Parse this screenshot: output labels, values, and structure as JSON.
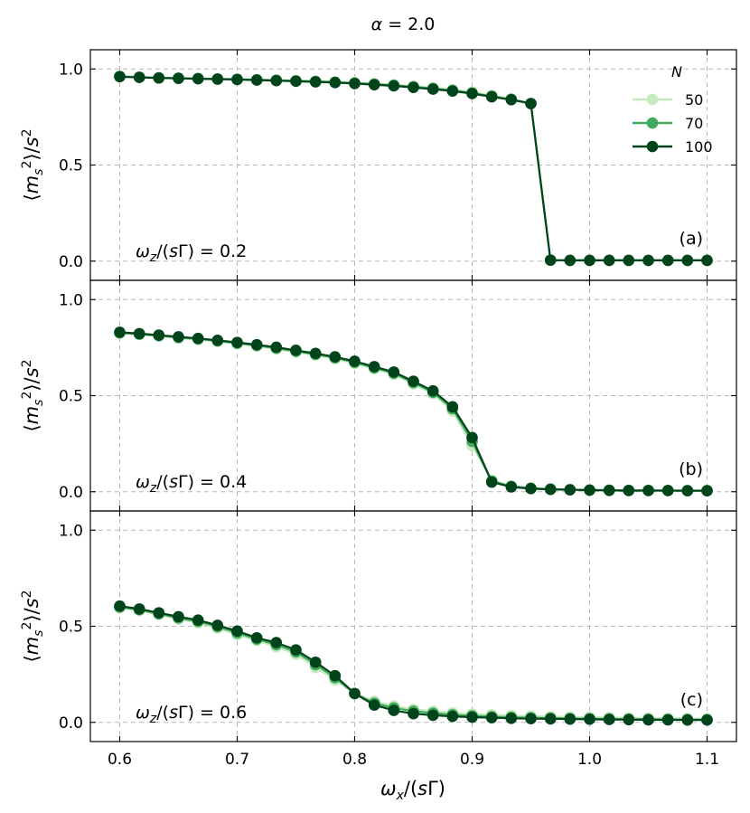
{
  "chart_data": {
    "type": "line",
    "title": "α = 2.0",
    "xlabel": "ω_x/(sΓ)",
    "ylabel": "⟨m_s²⟩/s²",
    "xlim": [
      0.575,
      1.125
    ],
    "ylim": [
      -0.1,
      1.1
    ],
    "xticks": [
      "0.6",
      "0.7",
      "0.8",
      "0.9",
      "1.0",
      "1.1"
    ],
    "yticks": [
      "0.0",
      "0.5",
      "1.0"
    ],
    "grid": true,
    "legend": {
      "title": "N",
      "position": "top-right",
      "entries": [
        "50",
        "70",
        "100"
      ]
    },
    "colors": {
      "N50": "#c7e9c0",
      "N70": "#41ab5d",
      "N100": "#00441b"
    },
    "x": [
      0.6,
      0.6125,
      0.625,
      0.6375,
      0.65,
      0.6625,
      0.675,
      0.6875,
      0.7,
      0.7125,
      0.725,
      0.7375,
      0.75,
      0.7625,
      0.775,
      0.7875,
      0.8,
      0.8125,
      0.825,
      0.8375,
      0.85,
      0.8625,
      0.875,
      0.8875,
      0.9,
      0.9125,
      0.925,
      0.9375,
      0.95,
      0.9625,
      0.975,
      0.9875,
      1.0,
      1.0125,
      1.025,
      1.0375,
      1.05,
      1.0625,
      1.075,
      1.0875,
      1.1
    ],
    "panels": [
      {
        "tag": "(a)",
        "annotation": "ω_z/(sΓ) = 0.2",
        "x": [
          0.6,
          0.6167,
          0.6333,
          0.65,
          0.6667,
          0.6833,
          0.7,
          0.7167,
          0.7333,
          0.75,
          0.7667,
          0.7833,
          0.8,
          0.8167,
          0.8333,
          0.85,
          0.8667,
          0.8833,
          0.9,
          0.9167,
          0.9333,
          0.95,
          0.9667,
          0.9833,
          1.0,
          1.0167,
          1.0333,
          1.05,
          1.0667,
          1.0833,
          1.1
        ],
        "series": [
          {
            "name": "50",
            "values": [
              0.962,
              0.958,
              0.955,
              0.953,
              0.951,
              0.949,
              0.947,
              0.945,
              0.943,
              0.94,
              0.937,
              0.933,
              0.929,
              0.924,
              0.918,
              0.911,
              0.903,
              0.893,
              0.88,
              0.863,
              0.845,
              0.82,
              0.005,
              0.004,
              0.004,
              0.004,
              0.004,
              0.004,
              0.004,
              0.004,
              0.004
            ]
          },
          {
            "name": "70",
            "values": [
              0.961,
              0.957,
              0.954,
              0.952,
              0.95,
              0.948,
              0.946,
              0.944,
              0.941,
              0.938,
              0.935,
              0.931,
              0.927,
              0.921,
              0.915,
              0.907,
              0.898,
              0.888,
              0.875,
              0.858,
              0.842,
              0.82,
              0.005,
              0.004,
              0.004,
              0.004,
              0.004,
              0.004,
              0.004,
              0.004,
              0.004
            ]
          },
          {
            "name": "100",
            "values": [
              0.96,
              0.956,
              0.953,
              0.951,
              0.949,
              0.947,
              0.945,
              0.942,
              0.939,
              0.936,
              0.933,
              0.929,
              0.924,
              0.918,
              0.912,
              0.904,
              0.895,
              0.885,
              0.872,
              0.855,
              0.84,
              0.82,
              0.005,
              0.004,
              0.004,
              0.004,
              0.004,
              0.004,
              0.004,
              0.004,
              0.004
            ]
          }
        ]
      },
      {
        "tag": "(b)",
        "annotation": "ω_z/(sΓ) = 0.4",
        "x": [
          0.6,
          0.6167,
          0.6333,
          0.65,
          0.6667,
          0.6833,
          0.7,
          0.7167,
          0.7333,
          0.75,
          0.7667,
          0.7833,
          0.8,
          0.8167,
          0.8333,
          0.85,
          0.8667,
          0.8833,
          0.9,
          0.9167,
          0.9333,
          0.95,
          0.9667,
          0.9833,
          1.0,
          1.0167,
          1.0333,
          1.05,
          1.0667,
          1.0833,
          1.1
        ],
        "series": [
          {
            "name": "50",
            "values": [
              0.825,
              0.818,
              0.81,
              0.8,
              0.792,
              0.782,
              0.77,
              0.758,
              0.743,
              0.727,
              0.711,
              0.692,
              0.668,
              0.64,
              0.61,
              0.56,
              0.51,
              0.42,
              0.24,
              0.06,
              0.03,
              0.02,
              0.015,
              0.012,
              0.01,
              0.009,
              0.008,
              0.008,
              0.007,
              0.007,
              0.007
            ]
          },
          {
            "name": "70",
            "values": [
              0.827,
              0.82,
              0.812,
              0.803,
              0.795,
              0.785,
              0.773,
              0.761,
              0.747,
              0.731,
              0.715,
              0.697,
              0.673,
              0.645,
              0.617,
              0.568,
              0.517,
              0.432,
              0.262,
              0.055,
              0.028,
              0.018,
              0.014,
              0.011,
              0.009,
              0.008,
              0.007,
              0.007,
              0.006,
              0.006,
              0.006
            ]
          },
          {
            "name": "100",
            "values": [
              0.83,
              0.823,
              0.815,
              0.806,
              0.798,
              0.788,
              0.777,
              0.765,
              0.752,
              0.736,
              0.72,
              0.702,
              0.679,
              0.651,
              0.623,
              0.575,
              0.525,
              0.442,
              0.282,
              0.05,
              0.025,
              0.016,
              0.012,
              0.01,
              0.008,
              0.007,
              0.006,
              0.006,
              0.006,
              0.005,
              0.005
            ]
          }
        ]
      },
      {
        "tag": "(c)",
        "annotation": "ω_z/(sΓ) = 0.6",
        "x": [
          0.6,
          0.6167,
          0.6333,
          0.65,
          0.6667,
          0.6833,
          0.7,
          0.7167,
          0.7333,
          0.75,
          0.7667,
          0.7833,
          0.8,
          0.8167,
          0.8333,
          0.85,
          0.8667,
          0.8833,
          0.9,
          0.9167,
          0.9333,
          0.95,
          0.9667,
          0.9833,
          1.0,
          1.0167,
          1.0333,
          1.05,
          1.0667,
          1.0833,
          1.1
        ],
        "series": [
          {
            "name": "50",
            "values": [
              0.595,
              0.582,
              0.56,
              0.538,
              0.518,
              0.49,
              0.455,
              0.425,
              0.393,
              0.355,
              0.285,
              0.22,
              0.15,
              0.11,
              0.085,
              0.068,
              0.058,
              0.05,
              0.044,
              0.04,
              0.036,
              0.033,
              0.03,
              0.028,
              0.026,
              0.025,
              0.023,
              0.022,
              0.021,
              0.02,
              0.019
            ]
          },
          {
            "name": "70",
            "values": [
              0.6,
              0.586,
              0.565,
              0.543,
              0.525,
              0.498,
              0.465,
              0.433,
              0.404,
              0.366,
              0.3,
              0.232,
              0.15,
              0.1,
              0.075,
              0.058,
              0.048,
              0.04,
              0.034,
              0.03,
              0.026,
              0.024,
              0.022,
              0.02,
              0.019,
              0.018,
              0.017,
              0.016,
              0.015,
              0.015,
              0.014
            ]
          },
          {
            "name": "100",
            "values": [
              0.605,
              0.59,
              0.57,
              0.55,
              0.532,
              0.505,
              0.475,
              0.44,
              0.415,
              0.377,
              0.313,
              0.243,
              0.15,
              0.09,
              0.062,
              0.045,
              0.037,
              0.031,
              0.027,
              0.024,
              0.021,
              0.019,
              0.018,
              0.017,
              0.016,
              0.015,
              0.014,
              0.013,
              0.013,
              0.012,
              0.012
            ]
          }
        ]
      }
    ]
  }
}
